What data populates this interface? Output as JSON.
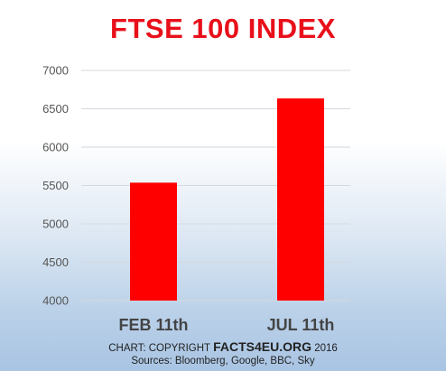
{
  "chart_data": {
    "type": "bar",
    "title": "FTSE 100 INDEX",
    "categories": [
      "FEB 11th",
      "JUL 11th"
    ],
    "values": [
      5537,
      6635
    ],
    "ylim": [
      4000,
      7000
    ],
    "yticks": [
      4000,
      4500,
      5000,
      5500,
      6000,
      6500,
      7000
    ],
    "xlabel": "",
    "ylabel": "",
    "grid": true,
    "bar_color": "#ff0000"
  },
  "footer": {
    "copyright_prefix": "CHART: COPYRIGHT",
    "brand": "FACTS4EU.ORG",
    "year": "2016",
    "sources": "Sources: Bloomberg, Google, BBC, Sky"
  },
  "colors": {
    "title": "#e8101a",
    "bar": "#ff0000"
  }
}
